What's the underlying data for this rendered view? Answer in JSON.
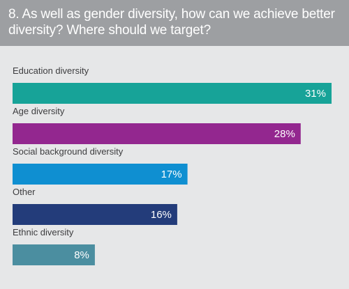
{
  "header": {
    "title": "8. As well as gender diversity, how can we achieve better diversity? Where should we target?"
  },
  "chart_data": {
    "type": "bar",
    "orientation": "horizontal",
    "title": "8. As well as gender diversity, how can we achieve better diversity? Where should we target?",
    "categories": [
      "Education diversity",
      "Age diversity",
      "Social background diversity",
      "Other",
      "Ethnic diversity"
    ],
    "values": [
      31,
      28,
      17,
      16,
      8
    ],
    "value_labels": [
      "31%",
      "28%",
      "17%",
      "16%",
      "8%"
    ],
    "colors": [
      "#17a398",
      "#93278f",
      "#0f8fd1",
      "#233c7a",
      "#4b8ea0"
    ],
    "xlim": [
      0,
      31
    ],
    "xlabel": "",
    "ylabel": "",
    "grid": false,
    "legend": "none"
  }
}
